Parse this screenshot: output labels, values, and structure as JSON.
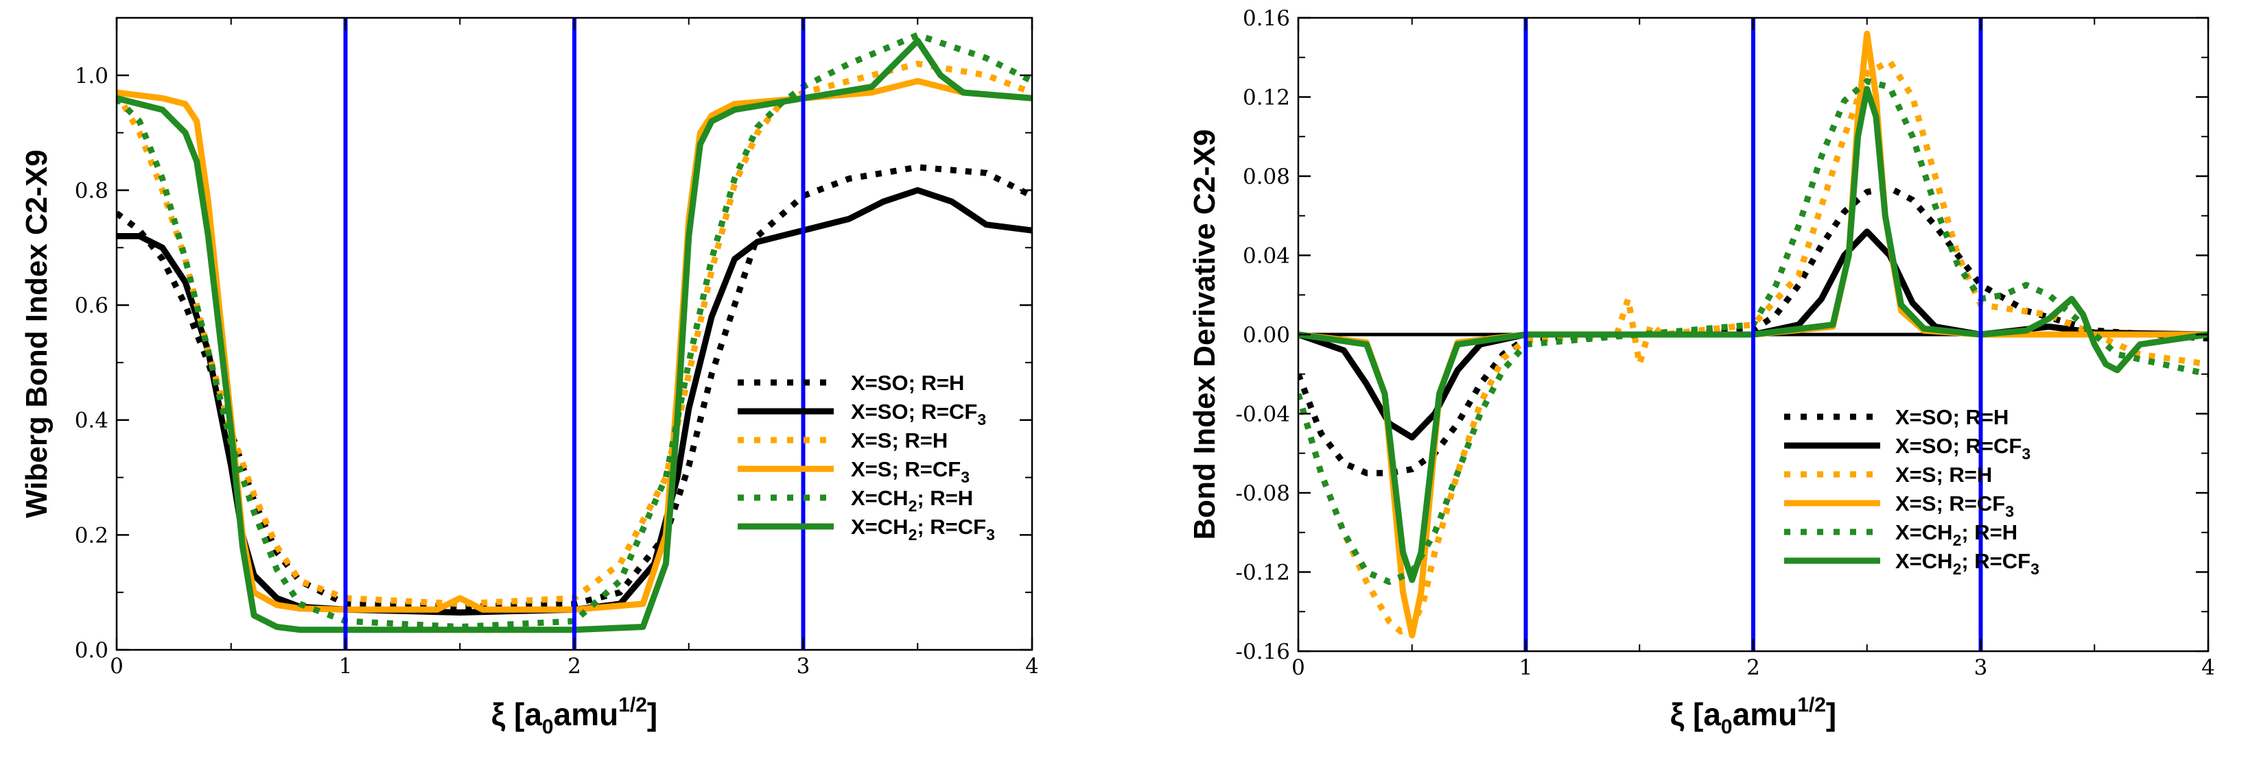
{
  "colors": {
    "black": "#000000",
    "orange": "#ffa500",
    "green": "#228b22",
    "marker_line": "#0000ff"
  },
  "chart_data": [
    {
      "type": "line",
      "ylabel": "Wiberg Bond Index C2-X9",
      "xlabel_main": "ξ [a",
      "xlabel_sub": "0",
      "xlabel_mid": "amu",
      "xlabel_sup": "1/2",
      "xlabel_end": "]",
      "xlim": [
        0,
        4
      ],
      "ylim": [
        0,
        1.1
      ],
      "xticks": [
        0,
        1,
        2,
        3,
        4
      ],
      "xtick_labels": [
        "0",
        "1",
        "2",
        "3",
        "4"
      ],
      "yticks": [
        0,
        0.2,
        0.4,
        0.6,
        0.8,
        1.0
      ],
      "ytick_labels": [
        "0.0",
        "0.2",
        "0.4",
        "0.6",
        "0.8",
        "1.0"
      ],
      "vlines": [
        1,
        2,
        3
      ],
      "legend_position": "right",
      "series": [
        {
          "label_main": "X=SO; R=H",
          "label_sub": "",
          "label_tail": "",
          "color": "#000000",
          "style": "dotted",
          "x": [
            0,
            0.1,
            0.2,
            0.3,
            0.4,
            0.5,
            0.6,
            0.7,
            0.8,
            1.0,
            1.5,
            2.0,
            2.2,
            2.4,
            2.5,
            2.6,
            2.8,
            3.0,
            3.2,
            3.5,
            3.8,
            4.0
          ],
          "y": [
            0.76,
            0.73,
            0.68,
            0.6,
            0.5,
            0.38,
            0.26,
            0.17,
            0.12,
            0.08,
            0.075,
            0.08,
            0.1,
            0.2,
            0.32,
            0.48,
            0.72,
            0.79,
            0.82,
            0.84,
            0.83,
            0.79
          ]
        },
        {
          "label_main": "X=SO; R=CF",
          "label_sub": "3",
          "label_tail": "",
          "color": "#000000",
          "style": "solid",
          "x": [
            0,
            0.1,
            0.2,
            0.3,
            0.4,
            0.5,
            0.55,
            0.6,
            0.7,
            0.8,
            1.0,
            1.5,
            2.0,
            2.2,
            2.35,
            2.45,
            2.5,
            2.6,
            2.7,
            2.8,
            3.0,
            3.2,
            3.35,
            3.5,
            3.65,
            3.8,
            4.0
          ],
          "y": [
            0.72,
            0.72,
            0.7,
            0.64,
            0.52,
            0.32,
            0.2,
            0.13,
            0.09,
            0.075,
            0.07,
            0.065,
            0.07,
            0.08,
            0.15,
            0.3,
            0.42,
            0.58,
            0.68,
            0.71,
            0.73,
            0.75,
            0.78,
            0.8,
            0.78,
            0.74,
            0.73
          ]
        },
        {
          "label_main": "X=S; R=H",
          "label_sub": "",
          "label_tail": "",
          "color": "#ffa500",
          "style": "dotted",
          "x": [
            0,
            0.1,
            0.2,
            0.3,
            0.4,
            0.5,
            0.6,
            0.7,
            0.8,
            1.0,
            1.5,
            2.0,
            2.2,
            2.4,
            2.5,
            2.6,
            2.7,
            2.8,
            2.9,
            3.0,
            3.2,
            3.5,
            3.8,
            4.0
          ],
          "y": [
            0.97,
            0.9,
            0.8,
            0.68,
            0.52,
            0.38,
            0.27,
            0.18,
            0.12,
            0.09,
            0.08,
            0.09,
            0.15,
            0.3,
            0.48,
            0.66,
            0.81,
            0.9,
            0.95,
            0.97,
            0.99,
            1.02,
            1.0,
            0.97
          ]
        },
        {
          "label_main": "X=S; R=CF",
          "label_sub": "3",
          "label_tail": "",
          "color": "#ffa500",
          "style": "solid",
          "x": [
            0,
            0.2,
            0.3,
            0.35,
            0.4,
            0.5,
            0.55,
            0.6,
            0.7,
            0.8,
            1.0,
            1.4,
            1.5,
            1.6,
            2.0,
            2.3,
            2.4,
            2.45,
            2.5,
            2.55,
            2.6,
            2.7,
            3.0,
            3.3,
            3.5,
            3.7,
            4.0
          ],
          "y": [
            0.97,
            0.96,
            0.95,
            0.92,
            0.78,
            0.4,
            0.2,
            0.1,
            0.078,
            0.072,
            0.07,
            0.07,
            0.09,
            0.07,
            0.07,
            0.08,
            0.2,
            0.45,
            0.75,
            0.9,
            0.93,
            0.95,
            0.96,
            0.97,
            0.99,
            0.97,
            0.96
          ]
        },
        {
          "label_main": "X=CH",
          "label_sub": "2",
          "label_tail": "; R=H",
          "color": "#228b22",
          "style": "dotted",
          "x": [
            0,
            0.1,
            0.2,
            0.3,
            0.4,
            0.5,
            0.6,
            0.7,
            0.8,
            1.0,
            1.5,
            2.0,
            2.2,
            2.4,
            2.5,
            2.6,
            2.7,
            2.8,
            2.9,
            3.0,
            3.2,
            3.5,
            3.8,
            4.0
          ],
          "y": [
            0.96,
            0.92,
            0.82,
            0.68,
            0.52,
            0.36,
            0.24,
            0.14,
            0.08,
            0.05,
            0.04,
            0.05,
            0.12,
            0.3,
            0.5,
            0.68,
            0.82,
            0.91,
            0.95,
            0.98,
            1.02,
            1.07,
            1.03,
            0.99
          ]
        },
        {
          "label_main": "X=CH",
          "label_sub": "2",
          "label_tail": "; R=CF",
          "label_sub2": "3",
          "color": "#228b22",
          "style": "solid",
          "x": [
            0,
            0.2,
            0.3,
            0.35,
            0.4,
            0.5,
            0.55,
            0.6,
            0.7,
            0.8,
            1.0,
            1.5,
            2.0,
            2.3,
            2.4,
            2.45,
            2.5,
            2.55,
            2.6,
            2.7,
            3.0,
            3.3,
            3.4,
            3.5,
            3.6,
            3.7,
            4.0
          ],
          "y": [
            0.96,
            0.94,
            0.9,
            0.85,
            0.72,
            0.38,
            0.18,
            0.06,
            0.04,
            0.035,
            0.035,
            0.035,
            0.035,
            0.04,
            0.15,
            0.4,
            0.72,
            0.88,
            0.92,
            0.94,
            0.96,
            0.98,
            1.02,
            1.06,
            1.0,
            0.97,
            0.96
          ]
        }
      ]
    },
    {
      "type": "line",
      "ylabel": "Bond Index Derivative C2-X9",
      "xlabel_main": "ξ [a",
      "xlabel_sub": "0",
      "xlabel_mid": "amu",
      "xlabel_sup": "1/2",
      "xlabel_end": "]",
      "xlim": [
        0,
        4
      ],
      "ylim": [
        -0.16,
        0.16
      ],
      "xticks": [
        0,
        1,
        2,
        3,
        4
      ],
      "xtick_labels": [
        "0",
        "1",
        "2",
        "3",
        "4"
      ],
      "yticks": [
        -0.16,
        -0.12,
        -0.08,
        -0.04,
        0,
        0.04,
        0.08,
        0.12,
        0.16
      ],
      "ytick_labels": [
        "-0.16",
        "-0.12",
        "-0.08",
        "-0.04",
        "0.00",
        "0.04",
        "0.08",
        "0.12",
        "0.16"
      ],
      "vlines": [
        1,
        2,
        3
      ],
      "zero_line": true,
      "legend_position": "bottom-right",
      "series": [
        {
          "label_main": "X=SO; R=H",
          "label_sub": "",
          "label_tail": "",
          "color": "#000000",
          "style": "dotted",
          "x": [
            0,
            0.1,
            0.2,
            0.3,
            0.4,
            0.5,
            0.6,
            0.7,
            0.8,
            0.9,
            1.0,
            1.5,
            2.0,
            2.1,
            2.2,
            2.3,
            2.4,
            2.5,
            2.6,
            2.7,
            2.8,
            2.9,
            3.0,
            3.2,
            3.5,
            4.0
          ],
          "y": [
            -0.02,
            -0.05,
            -0.065,
            -0.07,
            -0.07,
            -0.068,
            -0.06,
            -0.045,
            -0.025,
            -0.01,
            -0.002,
            0,
            0.002,
            0.01,
            0.025,
            0.045,
            0.062,
            0.072,
            0.074,
            0.068,
            0.055,
            0.04,
            0.025,
            0.012,
            0.002,
            -0.002
          ]
        },
        {
          "label_main": "X=SO; R=CF",
          "label_sub": "3",
          "label_tail": "",
          "color": "#000000",
          "style": "solid",
          "x": [
            0,
            0.2,
            0.3,
            0.4,
            0.5,
            0.6,
            0.7,
            0.8,
            1.0,
            2.0,
            2.2,
            2.3,
            2.4,
            2.5,
            2.6,
            2.7,
            2.8,
            3.0,
            3.3,
            3.5,
            4.0
          ],
          "y": [
            0,
            -0.008,
            -0.025,
            -0.045,
            -0.052,
            -0.04,
            -0.018,
            -0.005,
            0,
            0,
            0.005,
            0.018,
            0.04,
            0.052,
            0.04,
            0.016,
            0.004,
            0,
            0.004,
            0.001,
            0
          ]
        },
        {
          "label_main": "X=S; R=H",
          "label_sub": "",
          "label_tail": "",
          "color": "#ffa500",
          "style": "dotted",
          "x": [
            0,
            0.1,
            0.2,
            0.3,
            0.4,
            0.45,
            0.5,
            0.55,
            0.6,
            0.7,
            0.8,
            0.9,
            1.0,
            1.4,
            1.45,
            1.5,
            1.55,
            1.6,
            2.0,
            2.2,
            2.3,
            2.4,
            2.5,
            2.6,
            2.7,
            2.8,
            2.9,
            3.0,
            3.3,
            3.5,
            3.7,
            4.0
          ],
          "y": [
            -0.03,
            -0.07,
            -0.1,
            -0.125,
            -0.145,
            -0.15,
            -0.148,
            -0.135,
            -0.11,
            -0.07,
            -0.035,
            -0.012,
            -0.003,
            0,
            0.018,
            -0.015,
            0.005,
            0,
            0.005,
            0.03,
            0.065,
            0.1,
            0.132,
            0.138,
            0.12,
            0.08,
            0.04,
            0.015,
            0.01,
            0,
            -0.01,
            -0.015
          ]
        },
        {
          "label_main": "X=S; R=CF",
          "label_sub": "3",
          "label_tail": "",
          "color": "#ffa500",
          "style": "solid",
          "x": [
            0,
            0.3,
            0.38,
            0.42,
            0.46,
            0.5,
            0.54,
            0.58,
            0.62,
            0.7,
            1.0,
            2.0,
            2.35,
            2.42,
            2.46,
            2.5,
            2.54,
            2.58,
            2.65,
            2.75,
            3.0,
            4.0
          ],
          "y": [
            0,
            -0.004,
            -0.03,
            -0.08,
            -0.13,
            -0.152,
            -0.13,
            -0.08,
            -0.03,
            -0.004,
            0,
            0,
            0.004,
            0.04,
            0.11,
            0.152,
            0.12,
            0.06,
            0.012,
            0.002,
            0,
            0
          ]
        },
        {
          "label_main": "X=CH",
          "label_sub": "2",
          "label_tail": "; R=H",
          "color": "#228b22",
          "style": "dotted",
          "x": [
            0,
            0.1,
            0.2,
            0.3,
            0.4,
            0.5,
            0.6,
            0.7,
            0.8,
            0.9,
            1.0,
            1.5,
            2.0,
            2.1,
            2.2,
            2.3,
            2.4,
            2.5,
            2.6,
            2.7,
            2.8,
            2.9,
            3.0,
            3.1,
            3.2,
            3.3,
            3.4,
            3.5,
            3.6,
            3.8,
            4.0
          ],
          "y": [
            -0.03,
            -0.07,
            -0.1,
            -0.12,
            -0.125,
            -0.12,
            -0.1,
            -0.07,
            -0.04,
            -0.018,
            -0.005,
            0,
            0.005,
            0.025,
            0.055,
            0.09,
            0.118,
            0.128,
            0.125,
            0.1,
            0.065,
            0.035,
            0.018,
            0.02,
            0.025,
            0.02,
            0.01,
            0,
            -0.01,
            -0.015,
            -0.02
          ]
        },
        {
          "label_main": "X=CH",
          "label_sub": "2",
          "label_tail": "; R=CF",
          "label_sub2": "3",
          "color": "#228b22",
          "style": "solid",
          "x": [
            0,
            0.3,
            0.38,
            0.42,
            0.46,
            0.5,
            0.54,
            0.58,
            0.62,
            0.7,
            1.0,
            2.0,
            2.35,
            2.42,
            2.46,
            2.5,
            2.54,
            2.58,
            2.65,
            2.75,
            3.0,
            3.2,
            3.3,
            3.4,
            3.45,
            3.5,
            3.55,
            3.6,
            3.7,
            4.0
          ],
          "y": [
            0,
            -0.005,
            -0.03,
            -0.07,
            -0.11,
            -0.124,
            -0.11,
            -0.07,
            -0.03,
            -0.005,
            0,
            0,
            0.005,
            0.04,
            0.1,
            0.124,
            0.11,
            0.06,
            0.015,
            0.003,
            0,
            0.002,
            0.008,
            0.018,
            0.01,
            -0.005,
            -0.015,
            -0.018,
            -0.005,
            0
          ]
        }
      ]
    }
  ]
}
